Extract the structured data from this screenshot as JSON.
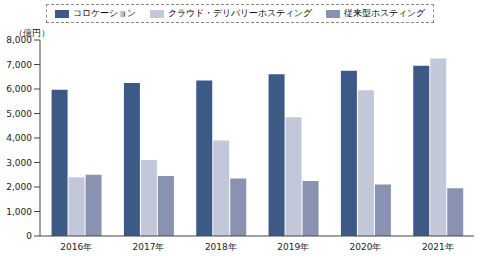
{
  "chart_data": {
    "type": "bar",
    "y_label": "（億円）",
    "categories": [
      "2016年",
      "2017年",
      "2018年",
      "2019年",
      "2020年",
      "2021年"
    ],
    "series": [
      {
        "name": "コロケーション",
        "color": "#3d5a87",
        "values": [
          5970,
          6250,
          6350,
          6600,
          6750,
          6950
        ]
      },
      {
        "name": "クラウド・デリバリーホスティング",
        "color": "#c3c7da",
        "values": [
          2400,
          3100,
          3900,
          4850,
          5950,
          7250
        ]
      },
      {
        "name": "従来型ホスティング",
        "color": "#8a92b2",
        "values": [
          2500,
          2450,
          2350,
          2250,
          2100,
          1950
        ]
      }
    ],
    "ylim": [
      0,
      8000
    ],
    "yticks": [
      0,
      {
        "value": 1000,
        "label": "1,000"
      },
      {
        "value": 2000,
        "label": "2,000"
      },
      {
        "value": 3000,
        "label": "3,000"
      },
      {
        "value": 4000,
        "label": "4,000"
      },
      {
        "value": 5000,
        "label": "5,000"
      },
      {
        "value": 6000,
        "label": "6,000"
      },
      {
        "value": 7000,
        "label": "7,000"
      },
      {
        "value": 8000,
        "label": "8,000"
      }
    ],
    "grid": false,
    "legend": "top"
  }
}
